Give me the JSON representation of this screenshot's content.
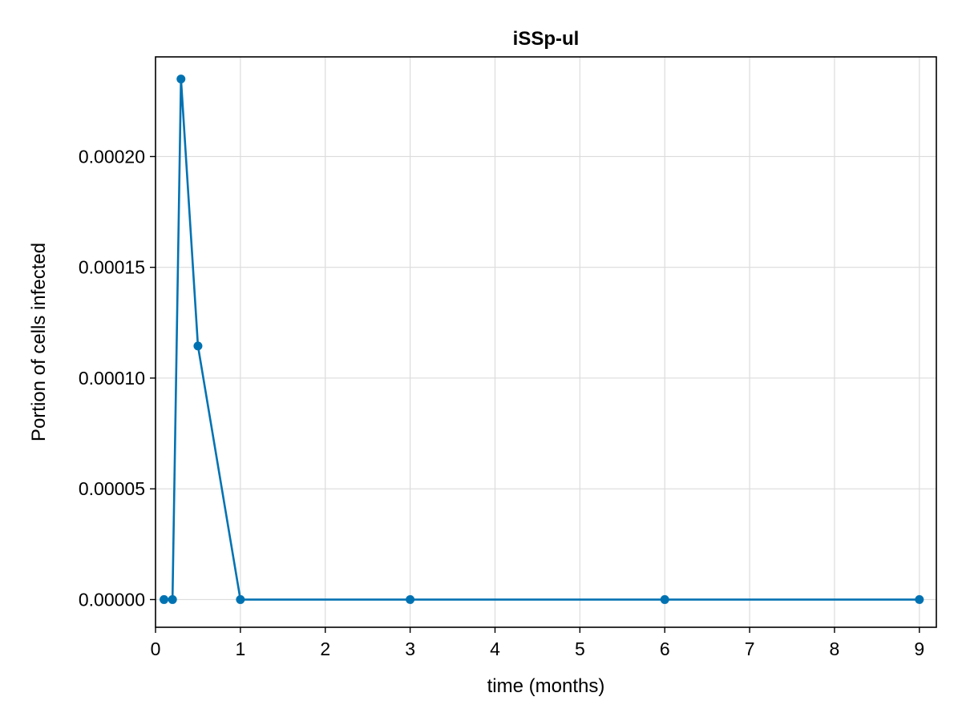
{
  "chart_data": {
    "type": "line",
    "title": "iSSp-ul",
    "xlabel": "time (months)",
    "ylabel": "Portion of cells infected",
    "xlim": [
      0,
      9.2
    ],
    "ylim": [
      -1.25e-05,
      0.000245
    ],
    "xticks": [
      0,
      1,
      2,
      3,
      4,
      5,
      6,
      7,
      8,
      9
    ],
    "xtick_labels": [
      "0",
      "1",
      "2",
      "3",
      "4",
      "5",
      "6",
      "7",
      "8",
      "9"
    ],
    "yticks": [
      0,
      5e-05,
      0.0001,
      0.00015,
      0.0002
    ],
    "ytick_labels": [
      "0.00000",
      "0.00005",
      "0.00010",
      "0.00015",
      "0.00020"
    ],
    "grid": true,
    "markers": true,
    "color": "#0072b2",
    "series": [
      {
        "x": [
          0.1,
          0.2,
          0.3,
          0.5,
          1,
          3,
          6,
          9
        ],
        "values": [
          0,
          0,
          0.000235,
          0.0001145,
          0,
          0,
          0,
          0
        ]
      }
    ]
  }
}
